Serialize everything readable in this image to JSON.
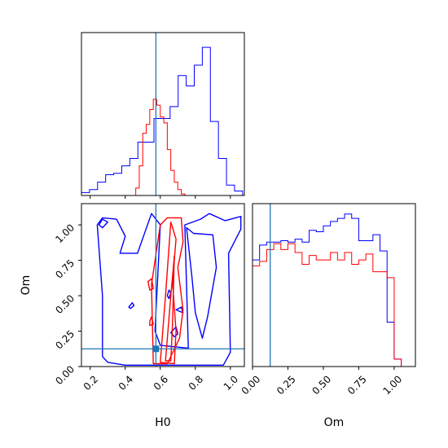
{
  "chart_data": {
    "type": "corner",
    "parameters": [
      "H0",
      "Om"
    ],
    "truth": {
      "H0": 0.575,
      "Om": 0.125
    },
    "colors": {
      "series_a": "#0000ff",
      "series_b": "#ff0000",
      "truth": "#1f77b4"
    },
    "h0_ticks": [
      "0.2",
      "0.4",
      "0.6",
      "0.8",
      "1.0"
    ],
    "om_ticks": [
      "0.00",
      "0.25",
      "0.50",
      "0.75",
      "1.00"
    ],
    "panels": [
      {
        "id": "h0-marginal",
        "type": "step-histogram",
        "xlim": [
          0.15,
          1.08
        ],
        "ylim": [
          0,
          1.1
        ],
        "series": [
          {
            "color_key": "series_a",
            "bin_edges": [
              0.15,
              0.196,
              0.242,
              0.288,
              0.334,
              0.38,
              0.426,
              0.472,
              0.518,
              0.564,
              0.61,
              0.656,
              0.702,
              0.748,
              0.794,
              0.84,
              0.886,
              0.932,
              0.978,
              1.024,
              1.07
            ],
            "heights": [
              0.02,
              0.04,
              0.09,
              0.14,
              0.15,
              0.2,
              0.25,
              0.36,
              0.36,
              0.52,
              0.52,
              0.6,
              0.81,
              0.74,
              0.88,
              1.0,
              0.5,
              0.25,
              0.07,
              0.03
            ]
          },
          {
            "color_key": "series_b",
            "bin_edges": [
              0.46,
              0.48,
              0.5,
              0.52,
              0.54,
              0.56,
              0.58,
              0.6,
              0.62,
              0.64,
              0.66,
              0.68,
              0.7,
              0.72,
              0.74
            ],
            "heights": [
              0.05,
              0.2,
              0.42,
              0.48,
              0.58,
              0.65,
              0.61,
              0.53,
              0.49,
              0.31,
              0.17,
              0.09,
              0.04,
              0.01
            ]
          }
        ]
      },
      {
        "id": "joint",
        "type": "contour",
        "xlabel": "H0",
        "ylabel": "Om",
        "xlim": [
          0.15,
          1.08
        ],
        "ylim": [
          0.0,
          1.15
        ],
        "contours": [
          {
            "color_key": "series_a",
            "width": 1.4,
            "points": [
              [
                0.27,
                0.07
              ],
              [
                0.27,
                0.5
              ],
              [
                0.24,
                1.0
              ],
              [
                0.27,
                1.05
              ],
              [
                0.35,
                1.04
              ],
              [
                0.4,
                0.92
              ],
              [
                0.37,
                0.8
              ],
              [
                0.47,
                0.8
              ],
              [
                0.55,
                1.08
              ],
              [
                0.6,
                1.0
              ],
              [
                0.57,
                0.25
              ],
              [
                0.6,
                0.15
              ],
              [
                0.76,
                0.13
              ],
              [
                0.74,
                1.0
              ],
              [
                0.83,
                1.04
              ],
              [
                0.88,
                1.08
              ],
              [
                0.97,
                1.03
              ],
              [
                1.06,
                1.06
              ],
              [
                1.06,
                0.97
              ],
              [
                0.99,
                0.8
              ],
              [
                1.0,
                0.1
              ],
              [
                0.96,
                0.01
              ],
              [
                0.87,
                0.01
              ],
              [
                0.62,
                0.01
              ],
              [
                0.4,
                0.01
              ],
              [
                0.3,
                0.03
              ]
            ]
          },
          {
            "color_key": "series_a",
            "width": 1.4,
            "points": [
              [
                0.75,
                0.98
              ],
              [
                0.79,
                0.94
              ],
              [
                0.9,
                0.93
              ],
              [
                0.92,
                0.7
              ],
              [
                0.87,
                0.35
              ],
              [
                0.84,
                0.2
              ],
              [
                0.8,
                0.38
              ],
              [
                0.78,
                0.64
              ]
            ]
          },
          {
            "color_key": "series_a",
            "width": 1.4,
            "points": [
              [
                0.25,
                1.0
              ],
              [
                0.27,
                1.04
              ],
              [
                0.3,
                1.02
              ],
              [
                0.27,
                0.98
              ]
            ]
          },
          {
            "color_key": "series_a",
            "width": 1.4,
            "points": [
              [
                0.42,
                0.42
              ],
              [
                0.44,
                0.45
              ],
              [
                0.45,
                0.43
              ],
              [
                0.43,
                0.41
              ]
            ]
          },
          {
            "color_key": "series_a",
            "width": 1.4,
            "points": [
              [
                0.64,
                0.5
              ],
              [
                0.65,
                0.54
              ],
              [
                0.66,
                0.52
              ],
              [
                0.65,
                0.48
              ]
            ]
          },
          {
            "color_key": "series_a",
            "width": 1.4,
            "points": [
              [
                0.69,
                0.4
              ],
              [
                0.72,
                0.42
              ],
              [
                0.73,
                0.38
              ]
            ]
          },
          {
            "color_key": "series_a",
            "width": 1.4,
            "points": [
              [
                0.66,
                0.24
              ],
              [
                0.69,
                0.28
              ],
              [
                0.7,
                0.23
              ],
              [
                0.68,
                0.21
              ]
            ]
          },
          {
            "color_key": "series_b",
            "width": 1.4,
            "points": [
              [
                0.56,
                0.02
              ],
              [
                0.55,
                0.58
              ],
              [
                0.6,
                1.0
              ],
              [
                0.64,
                1.05
              ],
              [
                0.72,
                1.05
              ],
              [
                0.73,
                0.88
              ],
              [
                0.7,
                0.7
              ],
              [
                0.73,
                0.4
              ],
              [
                0.71,
                0.2
              ],
              [
                0.64,
                0.02
              ]
            ]
          },
          {
            "color_key": "series_b",
            "width": 1.4,
            "points": [
              [
                0.6,
                0.03
              ],
              [
                0.63,
                0.5
              ],
              [
                0.66,
                1.02
              ],
              [
                0.69,
                0.9
              ],
              [
                0.67,
                0.6
              ],
              [
                0.69,
                0.25
              ],
              [
                0.68,
                0.02
              ]
            ]
          },
          {
            "color_key": "series_b",
            "width": 1.4,
            "points": [
              [
                0.63,
                0.04
              ],
              [
                0.66,
                0.5
              ],
              [
                0.68,
                0.78
              ],
              [
                0.67,
                0.3
              ],
              [
                0.66,
                0.04
              ]
            ]
          },
          {
            "color_key": "series_b",
            "width": 1.4,
            "points": [
              [
                0.53,
                0.6
              ],
              [
                0.55,
                0.62
              ],
              [
                0.56,
                0.55
              ],
              [
                0.54,
                0.54
              ]
            ]
          },
          {
            "color_key": "series_b",
            "width": 1.4,
            "points": [
              [
                0.54,
                0.32
              ],
              [
                0.55,
                0.35
              ],
              [
                0.56,
                0.3
              ],
              [
                0.54,
                0.29
              ]
            ]
          }
        ]
      },
      {
        "id": "om-marginal",
        "type": "step-histogram",
        "xlabel": "Om",
        "xlim": [
          0.0,
          1.15
        ],
        "ylim": [
          0,
          1.1
        ],
        "series": [
          {
            "color_key": "series_a",
            "bin_edges": [
              0.0,
              0.05,
              0.1,
              0.15,
              0.2,
              0.25,
              0.3,
              0.35,
              0.4,
              0.45,
              0.5,
              0.55,
              0.6,
              0.65,
              0.7,
              0.75,
              0.8,
              0.85,
              0.9,
              0.95,
              1.0,
              1.05,
              1.1
            ],
            "heights": [
              0.72,
              0.82,
              0.84,
              0.84,
              0.85,
              0.84,
              0.86,
              0.84,
              0.92,
              0.91,
              0.95,
              0.98,
              1.0,
              1.03,
              1.0,
              0.85,
              0.85,
              0.89,
              0.78,
              0.3,
              0.05,
              0.0
            ]
          },
          {
            "color_key": "series_b",
            "bin_edges": [
              0.0,
              0.05,
              0.1,
              0.15,
              0.2,
              0.25,
              0.3,
              0.35,
              0.4,
              0.45,
              0.5,
              0.55,
              0.6,
              0.65,
              0.7,
              0.75,
              0.8,
              0.85,
              0.9,
              0.95,
              1.0,
              1.05
            ],
            "heights": [
              0.68,
              0.71,
              0.79,
              0.83,
              0.79,
              0.83,
              0.77,
              0.69,
              0.75,
              0.72,
              0.72,
              0.77,
              0.72,
              0.77,
              0.69,
              0.72,
              0.76,
              0.64,
              0.64,
              0.6,
              0.05
            ]
          }
        ]
      }
    ]
  }
}
